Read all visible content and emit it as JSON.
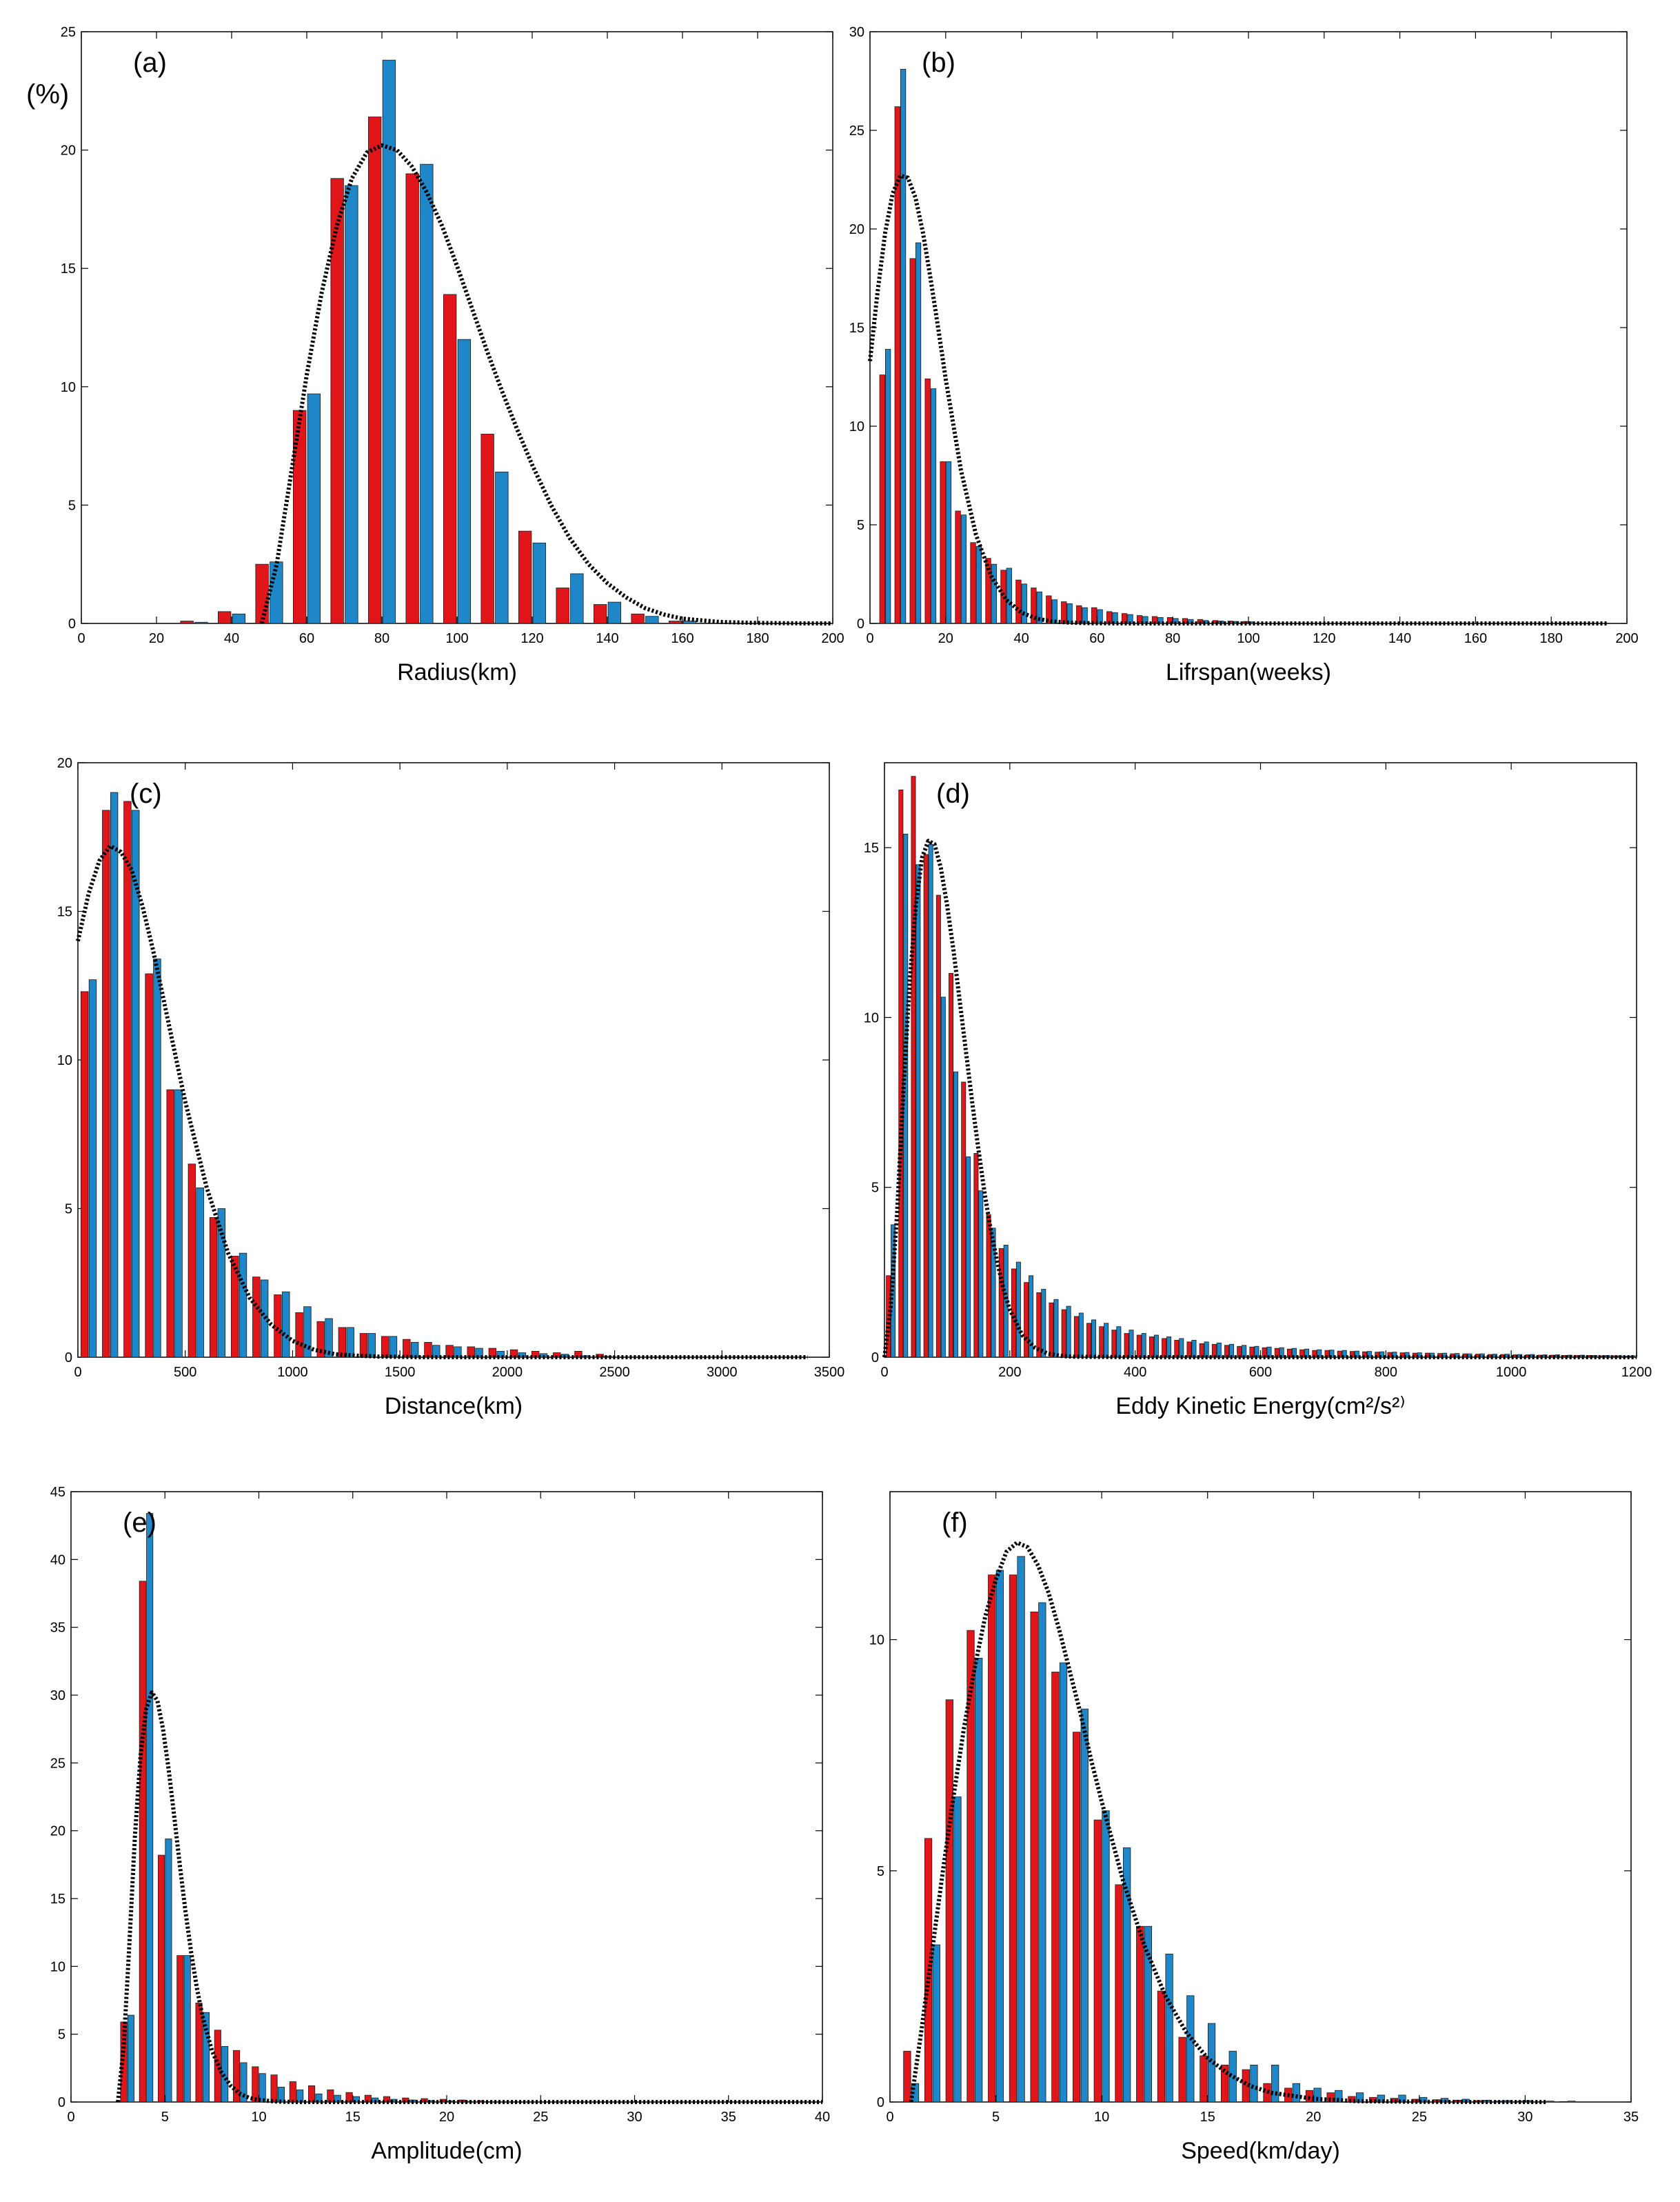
{
  "figure": {
    "percent_label": "(%)",
    "colors": {
      "series_red": "#e0161b",
      "series_blue": "#1f86c7",
      "fit_line": "#000000",
      "bar_edge": "#1a1a1a"
    }
  },
  "chart_data": [
    {
      "type": "bar",
      "panel_label": "(a)",
      "xlabel": "Radius(km)",
      "ylabel": "",
      "xlim": [
        0,
        200
      ],
      "ylim": [
        0,
        25
      ],
      "xticks": [
        0,
        20,
        40,
        60,
        80,
        100,
        120,
        140,
        160,
        180,
        200
      ],
      "yticks": [
        0,
        5,
        10,
        15,
        20,
        25
      ],
      "bin_width": 10,
      "categories": [
        30,
        40,
        50,
        60,
        70,
        80,
        90,
        100,
        110,
        120,
        130,
        140,
        150,
        160
      ],
      "series": [
        {
          "name": "red",
          "values": [
            0.1,
            0.5,
            2.5,
            9.0,
            18.8,
            21.4,
            19.0,
            13.9,
            8.0,
            3.9,
            1.5,
            0.8,
            0.4,
            0.1
          ]
        },
        {
          "name": "blue",
          "values": [
            0.05,
            0.4,
            2.6,
            9.7,
            18.5,
            23.8,
            19.4,
            12.0,
            6.4,
            3.4,
            2.1,
            0.9,
            0.3,
            0.1
          ]
        }
      ],
      "fit": {
        "style": "dotted",
        "x": [
          48,
          52,
          56,
          60,
          64,
          68,
          72,
          76,
          80,
          84,
          88,
          92,
          96,
          100,
          104,
          108,
          112,
          116,
          120,
          125,
          130,
          135,
          140,
          145,
          150,
          155,
          160,
          170,
          180,
          190,
          200
        ],
        "y": [
          0,
          2.5,
          6.5,
          10.5,
          14.0,
          16.8,
          18.8,
          19.9,
          20.2,
          20.0,
          19.3,
          18.2,
          16.8,
          15.1,
          13.3,
          11.5,
          9.8,
          8.2,
          6.7,
          5.0,
          3.6,
          2.5,
          1.7,
          1.1,
          0.65,
          0.38,
          0.2,
          0.06,
          0.02,
          0.005,
          0
        ]
      }
    },
    {
      "type": "bar",
      "panel_label": "(b)",
      "xlabel": "Lifrspan(weeks)",
      "ylabel": "",
      "xlim": [
        0,
        200
      ],
      "ylim": [
        0,
        30
      ],
      "xticks": [
        0,
        20,
        40,
        60,
        80,
        100,
        120,
        140,
        160,
        180,
        200
      ],
      "yticks": [
        0,
        5,
        10,
        15,
        20,
        25,
        30
      ],
      "bin_width": 4,
      "categories": [
        4,
        8,
        12,
        16,
        20,
        24,
        28,
        32,
        36,
        40,
        44,
        48,
        52,
        56,
        60,
        64,
        68,
        72,
        76,
        80,
        84,
        88,
        92,
        96,
        100
      ],
      "series": [
        {
          "name": "red",
          "values": [
            12.6,
            26.2,
            18.5,
            12.4,
            8.2,
            5.7,
            4.1,
            3.3,
            2.7,
            2.2,
            1.8,
            1.4,
            1.1,
            0.9,
            0.8,
            0.6,
            0.5,
            0.4,
            0.35,
            0.3,
            0.25,
            0.2,
            0.15,
            0.12,
            0.1
          ]
        },
        {
          "name": "blue",
          "values": [
            13.9,
            28.1,
            19.3,
            11.9,
            8.2,
            5.5,
            3.9,
            3.0,
            2.8,
            2.0,
            1.6,
            1.2,
            1.0,
            0.8,
            0.7,
            0.55,
            0.45,
            0.35,
            0.3,
            0.25,
            0.2,
            0.15,
            0.12,
            0.1,
            0.08
          ]
        }
      ],
      "fit": {
        "style": "dotted",
        "x": [
          0,
          2,
          4,
          6,
          8,
          10,
          12,
          14,
          16,
          18,
          20,
          24,
          28,
          32,
          36,
          40,
          44,
          48,
          52,
          56,
          60,
          70,
          80,
          100,
          140,
          195
        ],
        "y": [
          13.3,
          16.8,
          19.8,
          21.8,
          22.7,
          22.6,
          21.6,
          19.8,
          17.5,
          15.0,
          12.4,
          7.8,
          4.5,
          2.4,
          1.2,
          0.55,
          0.25,
          0.1,
          0.05,
          0.02,
          0.01,
          0,
          0,
          0,
          0,
          0
        ]
      }
    },
    {
      "type": "bar",
      "panel_label": "(c)",
      "xlabel": "Distance(km)",
      "ylabel": "",
      "xlim": [
        0,
        3500
      ],
      "ylim": [
        0,
        20
      ],
      "xticks": [
        0,
        500,
        1000,
        1500,
        2000,
        2500,
        3000,
        3500
      ],
      "yticks": [
        0,
        5,
        10,
        15,
        20
      ],
      "bin_width": 100,
      "categories": [
        50,
        150,
        250,
        350,
        450,
        550,
        650,
        750,
        850,
        950,
        1050,
        1150,
        1250,
        1350,
        1450,
        1550,
        1650,
        1750,
        1850,
        1950,
        2050,
        2150,
        2250,
        2350,
        2450
      ],
      "series": [
        {
          "name": "red",
          "values": [
            12.3,
            18.4,
            18.7,
            12.9,
            9.0,
            6.5,
            4.7,
            3.4,
            2.7,
            2.1,
            1.5,
            1.2,
            1.0,
            0.8,
            0.7,
            0.6,
            0.5,
            0.4,
            0.35,
            0.3,
            0.25,
            0.2,
            0.15,
            0.2,
            0.1
          ]
        },
        {
          "name": "blue",
          "values": [
            12.7,
            19.0,
            18.4,
            13.4,
            9.0,
            5.7,
            5.0,
            3.5,
            2.6,
            2.2,
            1.7,
            1.3,
            1.0,
            0.8,
            0.7,
            0.5,
            0.4,
            0.35,
            0.3,
            0.2,
            0.15,
            0.12,
            0.1,
            0.05,
            0.03
          ]
        }
      ],
      "fit": {
        "style": "dotted",
        "x": [
          0,
          50,
          100,
          150,
          200,
          250,
          300,
          350,
          400,
          450,
          500,
          600,
          700,
          800,
          900,
          1000,
          1100,
          1200,
          1300,
          1400,
          1600,
          1800,
          2000,
          2500,
          3000,
          3400
        ],
        "y": [
          14.0,
          15.6,
          16.7,
          17.2,
          17.0,
          16.4,
          15.2,
          13.7,
          12.0,
          10.3,
          8.6,
          5.7,
          3.5,
          2.0,
          1.1,
          0.55,
          0.25,
          0.1,
          0.05,
          0.02,
          0,
          0,
          0,
          0,
          0,
          0
        ]
      }
    },
    {
      "type": "bar",
      "panel_label": "(d)",
      "xlabel": "Eddy Kinetic Energy(cm²/s²⁾",
      "ylabel": "",
      "xlim": [
        0,
        1200
      ],
      "ylim": [
        0,
        17.5
      ],
      "xticks": [
        0,
        200,
        400,
        600,
        800,
        1000,
        1200
      ],
      "yticks": [
        0,
        5,
        10,
        15
      ],
      "bin_width": 20,
      "categories": [
        10,
        30,
        50,
        70,
        90,
        110,
        130,
        150,
        170,
        190,
        210,
        230,
        250,
        270,
        290,
        310,
        330,
        350,
        370,
        390,
        410,
        430,
        450,
        470,
        490,
        510,
        530,
        550,
        570,
        590,
        610,
        630,
        650,
        670,
        690,
        710,
        730,
        750,
        770,
        790,
        810,
        830,
        850,
        870,
        890,
        910,
        930,
        950,
        970,
        990,
        1010,
        1030,
        1050,
        1070,
        1090,
        1110,
        1130,
        1150,
        1170,
        1190
      ],
      "series": [
        {
          "name": "red",
          "values": [
            2.4,
            16.7,
            17.1,
            14.8,
            13.6,
            11.3,
            8.1,
            6.0,
            4.2,
            3.2,
            2.6,
            2.2,
            1.9,
            1.6,
            1.4,
            1.2,
            1.0,
            0.9,
            0.8,
            0.7,
            0.65,
            0.6,
            0.55,
            0.5,
            0.45,
            0.4,
            0.38,
            0.35,
            0.32,
            0.3,
            0.28,
            0.26,
            0.24,
            0.22,
            0.2,
            0.2,
            0.18,
            0.17,
            0.16,
            0.15,
            0.14,
            0.13,
            0.12,
            0.12,
            0.11,
            0.1,
            0.1,
            0.09,
            0.08,
            0.08,
            0.07,
            0.07,
            0.06,
            0.06,
            0.05,
            0.05,
            0.05,
            0.04,
            0.04,
            0.03
          ]
        },
        {
          "name": "blue",
          "values": [
            3.9,
            15.4,
            14.5,
            15.1,
            10.6,
            8.4,
            5.9,
            4.9,
            3.8,
            3.3,
            2.8,
            2.4,
            2.0,
            1.7,
            1.5,
            1.3,
            1.1,
            1.0,
            0.9,
            0.8,
            0.7,
            0.65,
            0.6,
            0.55,
            0.5,
            0.45,
            0.42,
            0.38,
            0.35,
            0.32,
            0.3,
            0.28,
            0.26,
            0.24,
            0.22,
            0.21,
            0.2,
            0.18,
            0.17,
            0.16,
            0.15,
            0.14,
            0.13,
            0.12,
            0.12,
            0.11,
            0.1,
            0.1,
            0.09,
            0.09,
            0.08,
            0.08,
            0.07,
            0.07,
            0.06,
            0.06,
            0.05,
            0.05,
            0.04,
            0.04
          ]
        }
      ],
      "fit": {
        "style": "dotted",
        "x": [
          0,
          10,
          20,
          30,
          40,
          50,
          60,
          70,
          80,
          90,
          100,
          110,
          120,
          130,
          140,
          150,
          160,
          170,
          180,
          190,
          200,
          220,
          240,
          260,
          280,
          300,
          400,
          600,
          800,
          1000,
          1200
        ],
        "y": [
          0,
          1.5,
          4.2,
          7.8,
          11.0,
          13.3,
          14.7,
          15.2,
          15.1,
          14.4,
          13.3,
          12.0,
          10.5,
          9.0,
          7.5,
          6.1,
          4.8,
          3.7,
          2.8,
          2.0,
          1.4,
          0.65,
          0.28,
          0.11,
          0.04,
          0.015,
          0,
          0,
          0,
          0,
          0
        ]
      }
    },
    {
      "type": "bar",
      "panel_label": "(e)",
      "xlabel": "Amplitude(cm)",
      "ylabel": "",
      "xlim": [
        0,
        40
      ],
      "ylim": [
        0,
        45
      ],
      "xticks": [
        0,
        5,
        10,
        15,
        20,
        25,
        30,
        35,
        40
      ],
      "yticks": [
        0,
        5,
        10,
        15,
        20,
        25,
        30,
        35,
        40,
        45
      ],
      "bin_width": 1,
      "categories": [
        3,
        4,
        5,
        6,
        7,
        8,
        9,
        10,
        11,
        12,
        13,
        14,
        15,
        16,
        17,
        18,
        19,
        20,
        21,
        22
      ],
      "series": [
        {
          "name": "red",
          "values": [
            5.9,
            38.4,
            18.2,
            10.8,
            7.3,
            5.3,
            3.8,
            2.6,
            2.0,
            1.5,
            1.2,
            0.9,
            0.7,
            0.5,
            0.4,
            0.3,
            0.25,
            0.2,
            0.15,
            0.1
          ]
        },
        {
          "name": "blue",
          "values": [
            6.4,
            43.4,
            19.4,
            10.8,
            6.6,
            4.1,
            2.9,
            2.1,
            1.1,
            0.9,
            0.6,
            0.5,
            0.4,
            0.3,
            0.2,
            0.15,
            0.1,
            0.08,
            0.05,
            0.03
          ]
        }
      ],
      "fit": {
        "style": "dotted",
        "x": [
          2.5,
          2.8,
          3.1,
          3.4,
          3.7,
          4.0,
          4.3,
          4.6,
          4.9,
          5.2,
          5.5,
          5.8,
          6.1,
          6.4,
          6.7,
          7.0,
          7.5,
          8.0,
          8.5,
          9.0,
          9.5,
          10,
          11,
          12,
          15,
          20,
          30,
          40
        ],
        "y": [
          0,
          4.0,
          11.5,
          19.5,
          25.5,
          29.0,
          30.2,
          29.6,
          27.5,
          24.5,
          21.0,
          17.4,
          14.0,
          11.0,
          8.4,
          6.3,
          3.8,
          2.2,
          1.2,
          0.6,
          0.3,
          0.15,
          0.03,
          0,
          0,
          0,
          0,
          0
        ]
      }
    },
    {
      "type": "bar",
      "panel_label": "(f)",
      "xlabel": "Speed(km/day)",
      "ylabel": "",
      "xlim": [
        0,
        35
      ],
      "ylim": [
        0,
        13.2
      ],
      "xticks": [
        0,
        5,
        10,
        15,
        20,
        25,
        30,
        35
      ],
      "yticks": [
        0,
        5,
        10
      ],
      "bin_width": 1,
      "categories": [
        1,
        2,
        3,
        4,
        5,
        6,
        7,
        8,
        9,
        10,
        11,
        12,
        13,
        14,
        15,
        16,
        17,
        18,
        19,
        20,
        21,
        22,
        23,
        24,
        25,
        26,
        27,
        28,
        29,
        30,
        31,
        32
      ],
      "series": [
        {
          "name": "red",
          "values": [
            1.1,
            5.7,
            8.7,
            10.2,
            11.4,
            11.4,
            10.6,
            9.3,
            8.0,
            6.1,
            4.7,
            3.8,
            2.4,
            1.4,
            1.0,
            0.8,
            0.7,
            0.4,
            0.3,
            0.25,
            0.2,
            0.12,
            0.1,
            0.08,
            0.06,
            0.05,
            0.04,
            0.03,
            0.02,
            0.02,
            0.01,
            0.01
          ]
        },
        {
          "name": "blue",
          "values": [
            0.4,
            3.4,
            6.6,
            9.6,
            11.5,
            11.8,
            10.8,
            9.5,
            8.5,
            6.3,
            5.5,
            3.8,
            3.2,
            2.3,
            1.7,
            1.1,
            0.8,
            0.8,
            0.4,
            0.3,
            0.25,
            0.2,
            0.15,
            0.15,
            0.1,
            0.08,
            0.06,
            0.04,
            0.03,
            0.03,
            0.02,
            0.02
          ]
        }
      ],
      "fit": {
        "style": "dotted",
        "x": [
          1,
          1.5,
          2,
          2.5,
          3,
          3.5,
          4,
          4.5,
          5,
          5.5,
          6,
          6.5,
          7,
          7.5,
          8,
          8.5,
          9,
          9.5,
          10,
          11,
          12,
          13,
          14,
          15,
          16,
          17,
          18,
          20,
          22,
          25,
          28,
          31
        ],
        "y": [
          0,
          1.6,
          3.3,
          5.0,
          6.6,
          8.1,
          9.4,
          10.5,
          11.3,
          11.9,
          12.1,
          12.0,
          11.6,
          11.0,
          10.2,
          9.3,
          8.4,
          7.4,
          6.5,
          4.8,
          3.4,
          2.3,
          1.5,
          0.95,
          0.6,
          0.35,
          0.2,
          0.07,
          0.02,
          0.005,
          0,
          0
        ]
      }
    }
  ]
}
